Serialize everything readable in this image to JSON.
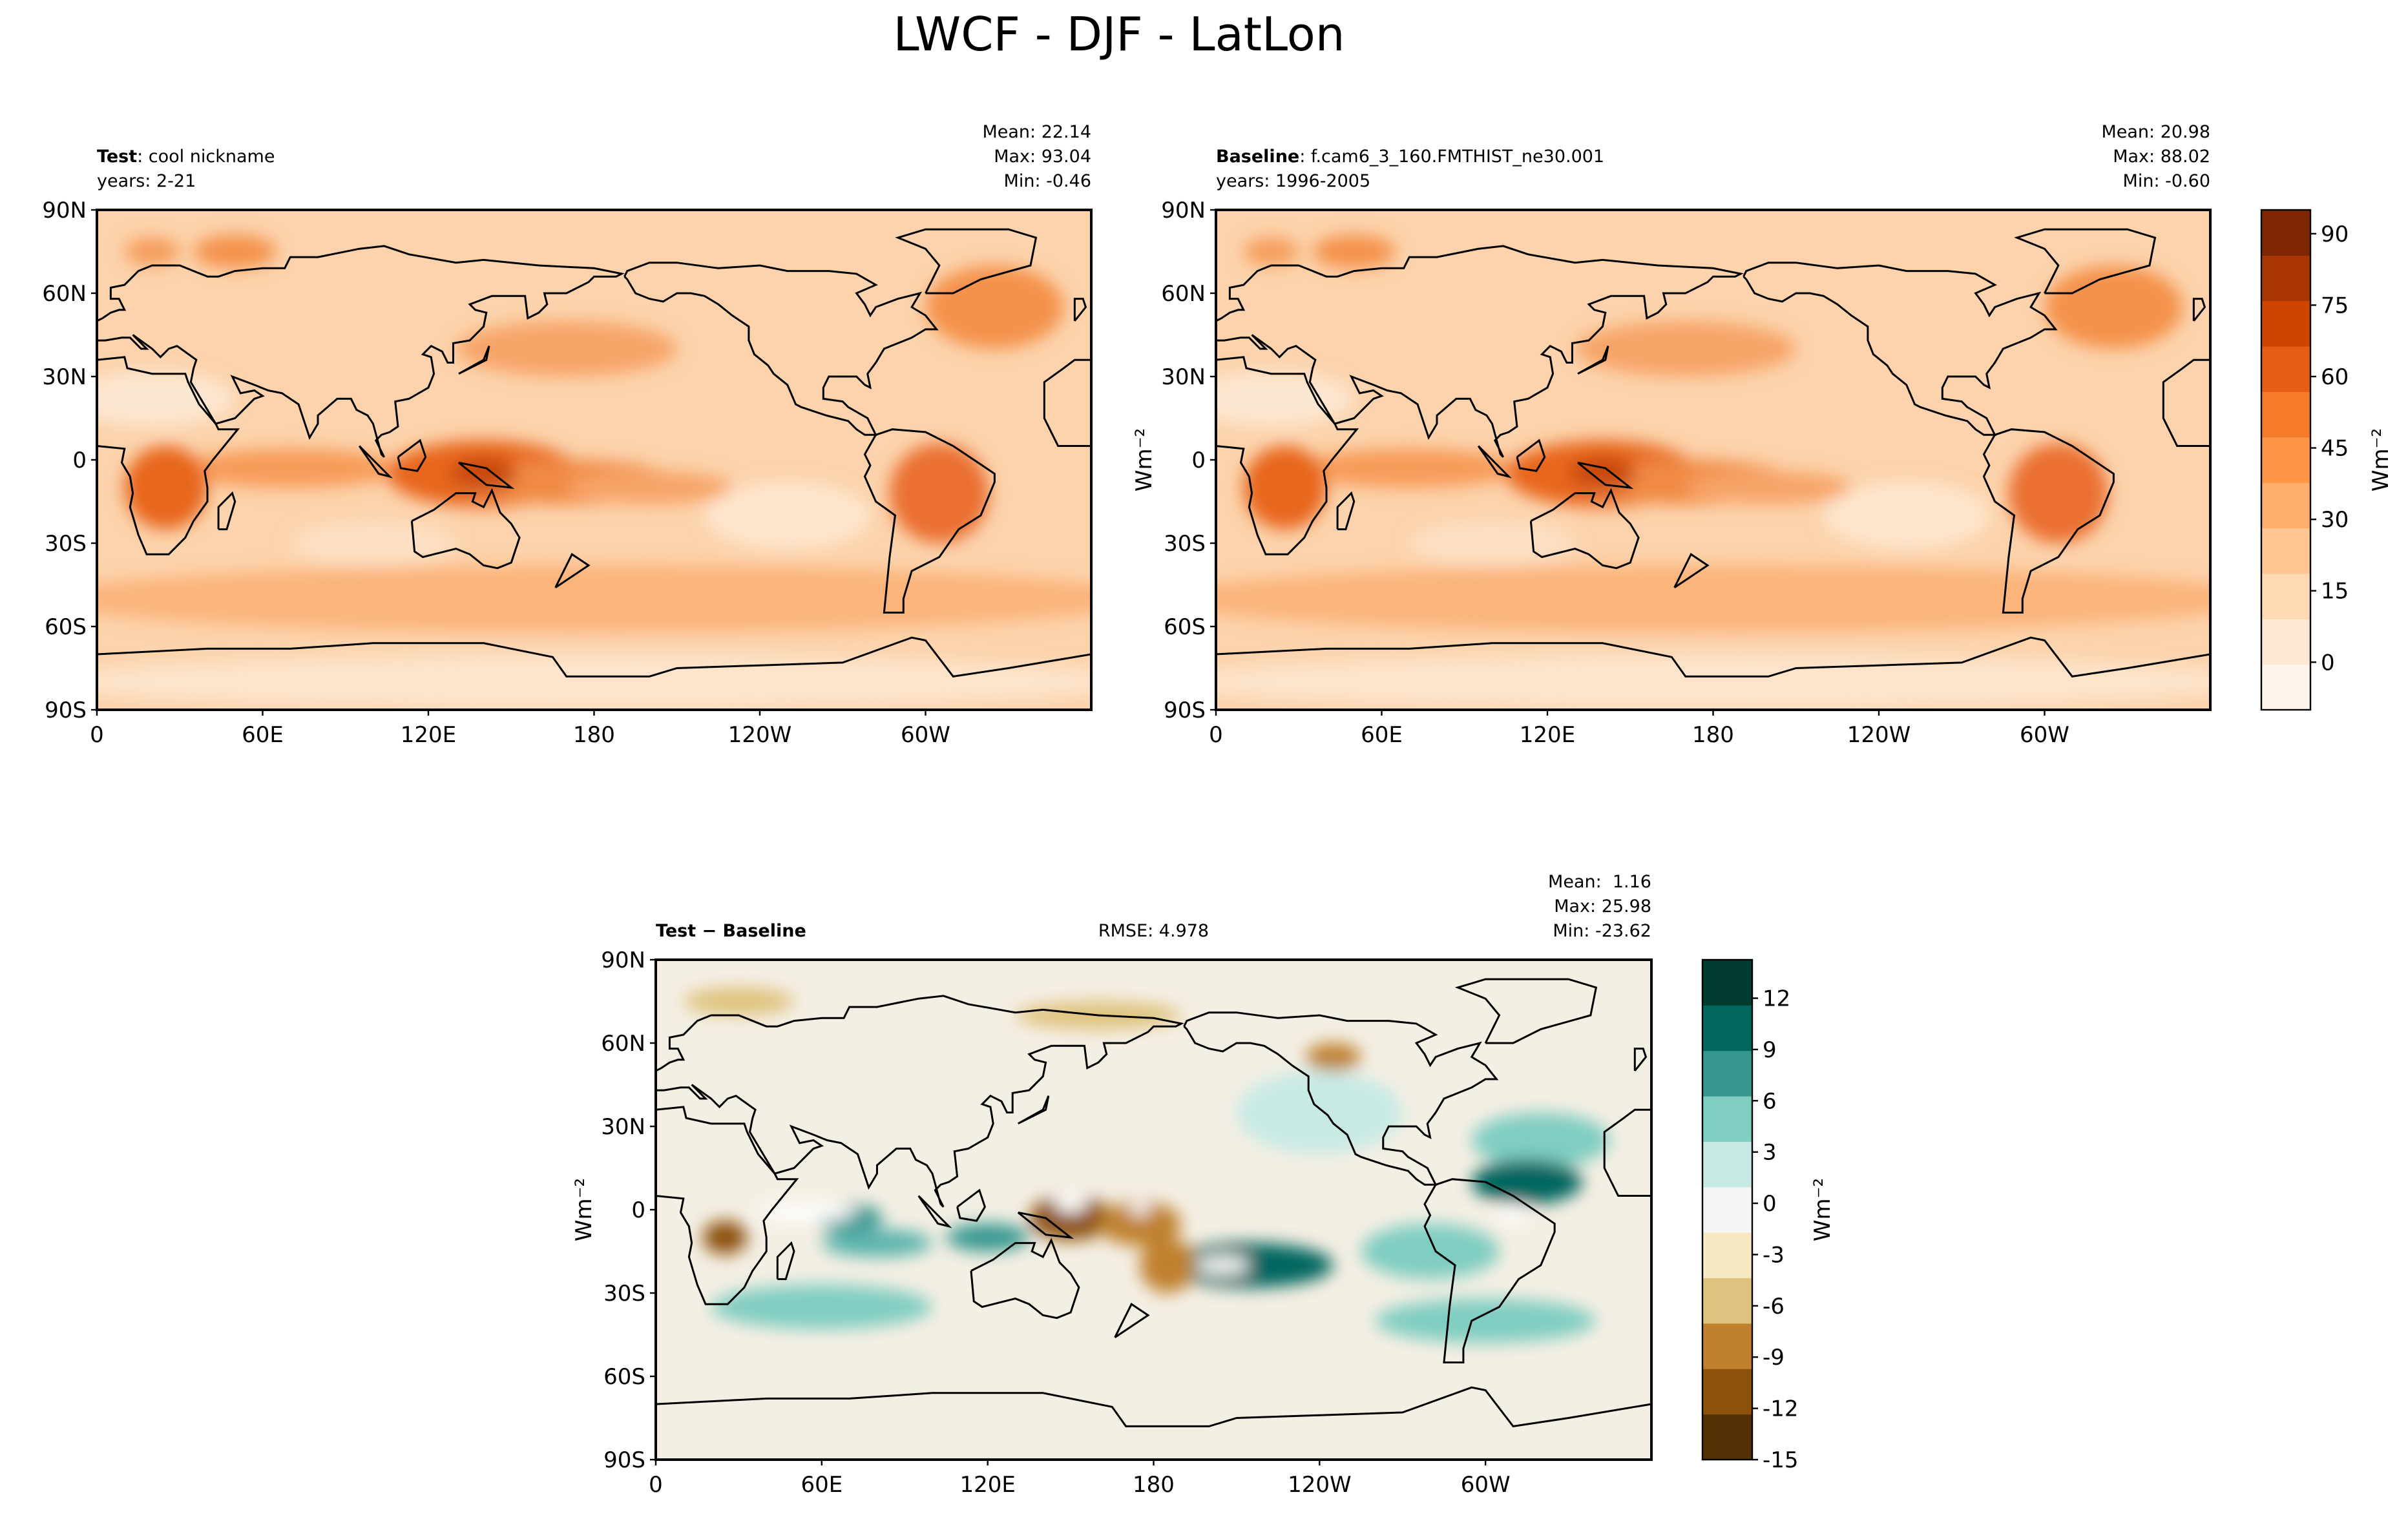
{
  "figure": {
    "title": "LWCF - DJF - LatLon"
  },
  "chart_data": [
    {
      "type": "map",
      "title_bold": "Test",
      "title": ": cool nickname",
      "subtitle": "years: 2-21",
      "stats": [
        "Mean: 22.14",
        "Max: 93.04",
        "Min: -0.46"
      ],
      "xlim": [
        0,
        360
      ],
      "ylim": [
        -90,
        90
      ],
      "xticks": [
        0,
        {
          "value": 60,
          "label": "60E"
        },
        {
          "value": 120,
          "label": "120E"
        },
        180,
        {
          "value": 240,
          "label": "120W"
        },
        {
          "value": 300,
          "label": "60W"
        }
      ],
      "yticks": [
        {
          "value": 90,
          "label": "90N"
        },
        {
          "value": 60,
          "label": "60N"
        },
        {
          "value": 30,
          "label": "30N"
        },
        0,
        {
          "value": -30,
          "label": "30S"
        },
        {
          "value": -60,
          "label": "60S"
        },
        {
          "value": -90,
          "label": "90S"
        }
      ]
    },
    {
      "type": "map",
      "title_bold": "Baseline",
      "title": ": f.cam6_3_160.FMTHIST_ne30.001",
      "subtitle": "years: 1996-2005",
      "stats": [
        "Mean: 20.98",
        "Max: 88.02",
        "Min: -0.60"
      ],
      "ylabel": "Wm⁻²",
      "xlim": [
        0,
        360
      ],
      "ylim": [
        -90,
        90
      ],
      "xticks": [
        0,
        {
          "value": 60,
          "label": "60E"
        },
        {
          "value": 120,
          "label": "120E"
        },
        180,
        {
          "value": 240,
          "label": "120W"
        },
        {
          "value": 300,
          "label": "60W"
        }
      ],
      "yticks": [
        {
          "value": 90,
          "label": "90N"
        },
        {
          "value": 60,
          "label": "60N"
        },
        {
          "value": 30,
          "label": "30N"
        },
        0,
        {
          "value": -30,
          "label": "30S"
        },
        {
          "value": -60,
          "label": "60S"
        },
        {
          "value": -90,
          "label": "90S"
        }
      ],
      "colorbar": {
        "label": "Wm⁻²",
        "ylim": [
          -10,
          95
        ],
        "yticks": [
          0,
          15,
          30,
          45,
          60,
          75,
          90
        ],
        "colors": [
          "#fff5eb",
          "#fee8d3",
          "#fdd9b4",
          "#fdc692",
          "#fdae6b",
          "#fd9446",
          "#f57a2a",
          "#e65e13",
          "#ce4401",
          "#a83703",
          "#7f2704"
        ]
      }
    },
    {
      "type": "map",
      "title_bold": "Test − Baseline",
      "annotation": "RMSE: 4.978",
      "stats": [
        "Mean:  1.16",
        "Max: 25.98",
        "Min: -23.62"
      ],
      "ylabel": "Wm⁻²",
      "xlim": [
        0,
        360
      ],
      "ylim": [
        -90,
        90
      ],
      "xticks": [
        0,
        {
          "value": 60,
          "label": "60E"
        },
        {
          "value": 120,
          "label": "120E"
        },
        180,
        {
          "value": 240,
          "label": "120W"
        },
        {
          "value": 300,
          "label": "60W"
        }
      ],
      "yticks": [
        {
          "value": 90,
          "label": "90N"
        },
        {
          "value": 60,
          "label": "60N"
        },
        {
          "value": 30,
          "label": "30N"
        },
        0,
        {
          "value": -30,
          "label": "30S"
        },
        {
          "value": -60,
          "label": "60S"
        },
        {
          "value": -90,
          "label": "90S"
        }
      ],
      "colorbar": {
        "label": "Wm⁻²",
        "ylim": [
          -15,
          14.25
        ],
        "yticks": [
          -15,
          -12,
          -9,
          -6,
          -3,
          0,
          3,
          6,
          9,
          12
        ],
        "colors": [
          "#543005",
          "#8c510a",
          "#bf812d",
          "#dfc27d",
          "#f6e8c3",
          "#f5f5f5",
          "#c7eae5",
          "#80cdc1",
          "#35978f",
          "#01665e",
          "#003c30"
        ]
      }
    }
  ]
}
